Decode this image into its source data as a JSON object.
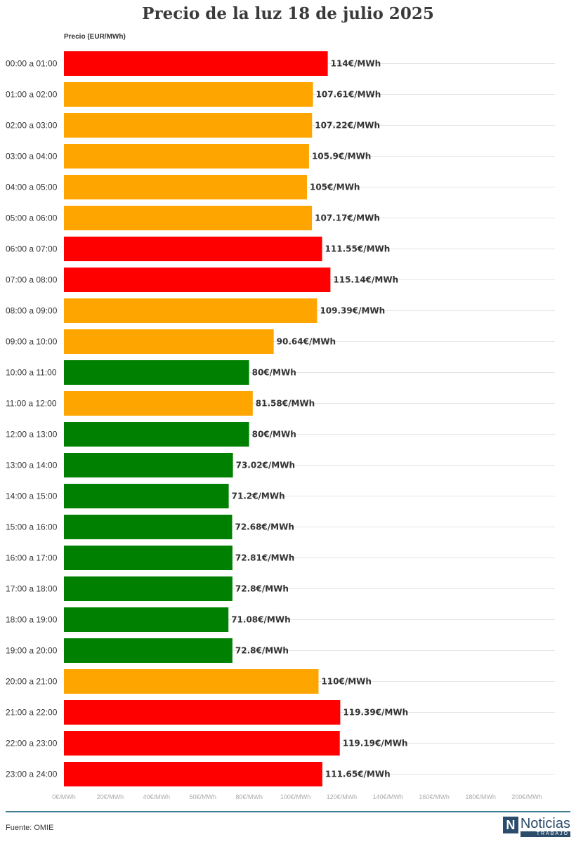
{
  "title": "Precio de la luz 18 de julio 2025",
  "source": "Fuente: OMIE",
  "brand": {
    "mark": "N",
    "name": "Noticias",
    "sub": "TRABAJO"
  },
  "colors": {
    "red": "#ff0000",
    "orange": "#ffa500",
    "green": "#008000",
    "footer_rule": "#3f7f95",
    "brand": "#2b4d6b"
  },
  "chart_data": {
    "type": "bar",
    "orientation": "horizontal",
    "title": "Precio de la luz 18 de julio 2025",
    "xlabel": "",
    "ylabel": "Precio (EUR/MWh)",
    "xlim": [
      0,
      200
    ],
    "grid": true,
    "legend": "none",
    "value_suffix": "€/MWh",
    "ticks": [
      "0€/MWh",
      "20€/MWh",
      "40€/MWh",
      "60€/MWh",
      "80€/MWh",
      "100€/MWh",
      "120€/MWh",
      "140€/MWh",
      "160€/MWh",
      "180€/MWh",
      "200€/MWh"
    ],
    "categories": [
      "00:00 a 01:00",
      "01:00 a 02:00",
      "02:00 a 03:00",
      "03:00 a 04:00",
      "04:00 a 05:00",
      "05:00 a 06:00",
      "06:00 a 07:00",
      "07:00 a 08:00",
      "08:00 a 09:00",
      "09:00 a 10:00",
      "10:00 a 11:00",
      "11:00 a 12:00",
      "12:00 a 13:00",
      "13:00 a 14:00",
      "14:00 a 15:00",
      "15:00 a 16:00",
      "16:00 a 17:00",
      "17:00 a 18:00",
      "18:00 a 19:00",
      "19:00 a 20:00",
      "20:00 a 21:00",
      "21:00 a 22:00",
      "22:00 a 23:00",
      "23:00 a 24:00"
    ],
    "values": [
      114,
      107.61,
      107.22,
      105.9,
      105,
      107.17,
      111.55,
      115.14,
      109.39,
      90.64,
      80,
      81.58,
      80,
      73.02,
      71.2,
      72.68,
      72.81,
      72.8,
      71.08,
      72.8,
      110,
      119.39,
      119.19,
      111.65
    ],
    "value_labels": [
      "114€/MWh",
      "107.61€/MWh",
      "107.22€/MWh",
      "105.9€/MWh",
      "105€/MWh",
      "107.17€/MWh",
      "111.55€/MWh",
      "115.14€/MWh",
      "109.39€/MWh",
      "90.64€/MWh",
      "80€/MWh",
      "81.58€/MWh",
      "80€/MWh",
      "73.02€/MWh",
      "71.2€/MWh",
      "72.68€/MWh",
      "72.81€/MWh",
      "72.8€/MWh",
      "71.08€/MWh",
      "72.8€/MWh",
      "110€/MWh",
      "119.39€/MWh",
      "119.19€/MWh",
      "111.65€/MWh"
    ],
    "bar_colors": [
      "#ff0000",
      "#ffa500",
      "#ffa500",
      "#ffa500",
      "#ffa500",
      "#ffa500",
      "#ff0000",
      "#ff0000",
      "#ffa500",
      "#ffa500",
      "#008000",
      "#ffa500",
      "#008000",
      "#008000",
      "#008000",
      "#008000",
      "#008000",
      "#008000",
      "#008000",
      "#008000",
      "#ffa500",
      "#ff0000",
      "#ff0000",
      "#ff0000"
    ]
  }
}
